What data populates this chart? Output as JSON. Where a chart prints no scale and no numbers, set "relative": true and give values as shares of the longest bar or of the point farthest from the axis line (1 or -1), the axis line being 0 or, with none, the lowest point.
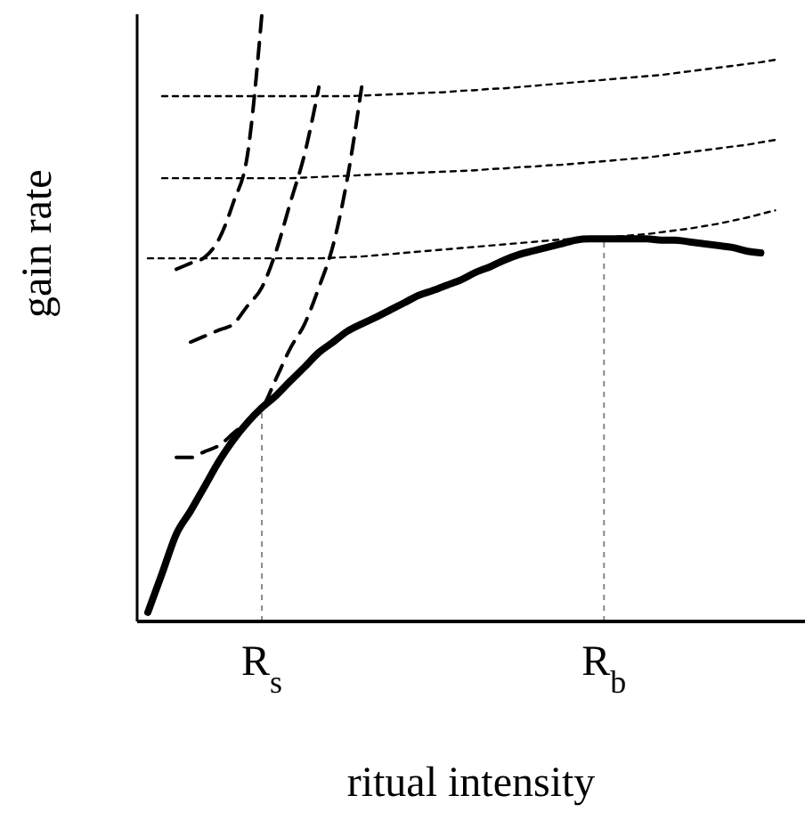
{
  "chart_data": {
    "type": "line",
    "relative": true,
    "xlabel": "ritual intensity",
    "ylabel": "gain rate",
    "tick_labels": "x",
    "grid": false,
    "legend": false,
    "marker": "none",
    "categories": [
      null,
      null,
      null,
      null,
      null,
      null,
      null,
      null,
      "R$_{s}$",
      null,
      null,
      null,
      null,
      null,
      null,
      null,
      null,
      null,
      null,
      null,
      null,
      null,
      null,
      null,
      null,
      null,
      null,
      null,
      null,
      null,
      null,
      null,
      "R$_{b}$",
      null,
      null,
      null,
      null,
      null,
      null,
      null,
      null,
      null,
      null,
      null,
      null
    ],
    "series": [
      {
        "color": "#000000",
        "line_style": "solid",
        "values": [
          0.015,
          0.079,
          0.144,
          0.182,
          0.223,
          0.264,
          0.299,
          0.328,
          0.352,
          0.372,
          0.396,
          0.419,
          0.443,
          0.46,
          0.478,
          0.49,
          0.501,
          0.513,
          0.525,
          0.537,
          0.545,
          0.554,
          0.563,
          0.575,
          0.584,
          0.595,
          0.604,
          0.61,
          0.616,
          0.622,
          0.628,
          0.63,
          0.63,
          0.63,
          0.63,
          0.63,
          0.628,
          0.628,
          0.625,
          0.622,
          0.619,
          0.616,
          0.61,
          0.607,
          null
        ]
      },
      {
        "color": "#000000",
        "line_style": "dotted",
        "values": [
          0.598,
          0.598,
          0.598,
          0.598,
          0.598,
          0.598,
          0.598,
          0.598,
          0.598,
          0.598,
          0.598,
          0.598,
          0.598,
          0.599,
          0.6,
          0.601,
          0.603,
          0.605,
          0.607,
          0.609,
          0.611,
          0.613,
          0.615,
          0.617,
          0.619,
          0.621,
          0.623,
          0.625,
          0.627,
          0.629,
          0.63,
          0.631,
          0.632,
          0.634,
          0.636,
          0.638,
          0.641,
          0.644,
          0.647,
          0.651,
          0.655,
          0.66,
          0.665,
          0.671,
          0.677
        ]
      },
      {
        "color": "#000000",
        "line_style": "dotted",
        "values": [
          null,
          0.73,
          0.73,
          0.73,
          0.73,
          0.73,
          0.73,
          0.73,
          0.73,
          0.73,
          0.73,
          0.731,
          0.732,
          0.733,
          0.734,
          0.735,
          0.736,
          0.737,
          0.738,
          0.739,
          0.74,
          0.741,
          0.742,
          0.743,
          0.745,
          0.746,
          0.748,
          0.749,
          0.751,
          0.752,
          0.754,
          0.756,
          0.758,
          0.76,
          0.762,
          0.764,
          0.767,
          0.77,
          0.773,
          0.776,
          0.779,
          0.782,
          0.785,
          0.789,
          0.793
        ]
      },
      {
        "color": "#000000",
        "line_style": "dotted",
        "values": [
          null,
          0.865,
          0.865,
          0.865,
          0.865,
          0.865,
          0.865,
          0.865,
          0.865,
          0.865,
          0.865,
          0.865,
          0.865,
          0.865,
          0.865,
          0.866,
          0.867,
          0.868,
          0.869,
          0.87,
          0.871,
          0.872,
          0.874,
          0.875,
          0.877,
          0.878,
          0.88,
          0.882,
          0.884,
          0.886,
          0.888,
          0.89,
          0.892,
          0.894,
          0.896,
          0.898,
          0.9,
          0.903,
          0.906,
          0.909,
          0.912,
          0.915,
          0.918,
          0.921,
          0.925
        ]
      },
      {
        "color": "#000000",
        "line_style": "dashed",
        "values": [
          null,
          null,
          0.27,
          0.27,
          0.28,
          0.29,
          0.31,
          0.33,
          0.35,
          0.4,
          0.45,
          0.49,
          0.55,
          0.62,
          0.73,
          0.88,
          null,
          null,
          null,
          null,
          null,
          null,
          null,
          null,
          null,
          null,
          null,
          null,
          null,
          null,
          null,
          null,
          null,
          null,
          null,
          null,
          null,
          null,
          null,
          null,
          null,
          null,
          null,
          null,
          null
        ]
      },
      {
        "color": "#000000",
        "line_style": "dashed",
        "values": [
          null,
          null,
          null,
          0.46,
          0.47,
          0.48,
          0.49,
          0.52,
          0.55,
          0.61,
          0.69,
          0.77,
          0.88,
          null,
          null,
          null,
          null,
          null,
          null,
          null,
          null,
          null,
          null,
          null,
          null,
          null,
          null,
          null,
          null,
          null,
          null,
          null,
          null,
          null,
          null,
          null,
          null,
          null,
          null,
          null,
          null,
          null,
          null,
          null,
          null
        ]
      },
      {
        "color": "#000000",
        "line_style": "dashed",
        "values": [
          null,
          null,
          0.58,
          0.59,
          0.6,
          0.63,
          0.69,
          0.77,
          1,
          null,
          null,
          null,
          null,
          null,
          null,
          null,
          null,
          null,
          null,
          null,
          null,
          null,
          null,
          null,
          null,
          null,
          null,
          null,
          null,
          null,
          null,
          null,
          null,
          null,
          null,
          null,
          null,
          null,
          null,
          null,
          null,
          null,
          null,
          null,
          null
        ]
      }
    ],
    "ref_lines": [
      {
        "axis": "x",
        "value": "R$_{s}$",
        "color": "#888888",
        "line_style": "dotted"
      },
      {
        "axis": "x",
        "value": "R$_{b}$",
        "color": "#888888",
        "line_style": "dotted"
      }
    ]
  }
}
